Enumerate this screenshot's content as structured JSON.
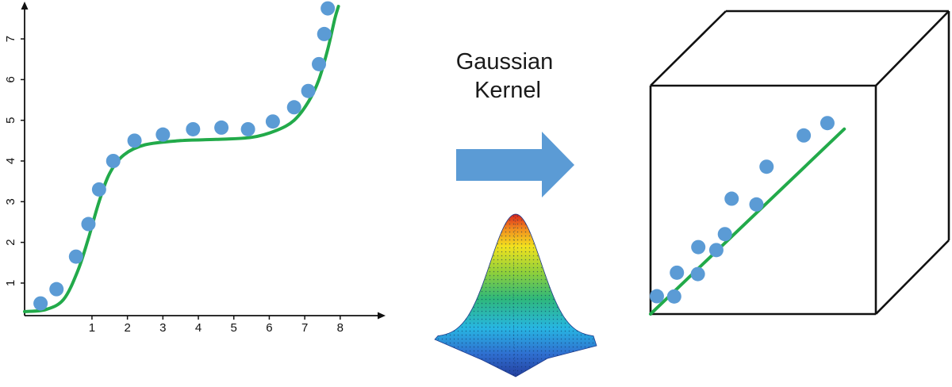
{
  "kernel_label": {
    "line1": "Gaussian",
    "line2": "Kernel"
  },
  "colors": {
    "point": "#5b9bd5",
    "curve": "#22aa4a",
    "arrow": "#5b9bd5",
    "axis": "#111111"
  },
  "icons": {
    "arrow": "right-arrow-icon",
    "kernel_surface": "gaussian-surface-icon"
  },
  "chart_data": [
    {
      "type": "scatter",
      "title": "",
      "xlabel": "",
      "ylabel": "",
      "xlim": [
        -0.9,
        9.1
      ],
      "ylim": [
        0.2,
        7.8
      ],
      "xticks": [
        "1",
        "2",
        "3",
        "4",
        "5",
        "6",
        "7",
        "8"
      ],
      "yticks": [
        "1",
        "2",
        "3",
        "4",
        "5",
        "6",
        "7"
      ],
      "points": [
        [
          -0.45,
          0.5
        ],
        [
          0.0,
          0.85
        ],
        [
          0.55,
          1.65
        ],
        [
          0.9,
          2.45
        ],
        [
          1.2,
          3.3
        ],
        [
          1.6,
          4.0
        ],
        [
          2.2,
          4.5
        ],
        [
          3.0,
          4.65
        ],
        [
          3.85,
          4.78
        ],
        [
          4.65,
          4.82
        ],
        [
          5.4,
          4.78
        ],
        [
          6.1,
          4.97
        ],
        [
          6.7,
          5.32
        ],
        [
          7.1,
          5.72
        ],
        [
          7.4,
          6.38
        ],
        [
          7.55,
          7.12
        ],
        [
          7.65,
          7.75
        ]
      ],
      "curve": [
        [
          -0.9,
          0.3
        ],
        [
          -0.3,
          0.35
        ],
        [
          0.2,
          0.6
        ],
        [
          0.6,
          1.3
        ],
        [
          0.9,
          2.1
        ],
        [
          1.2,
          3.0
        ],
        [
          1.5,
          3.7
        ],
        [
          1.9,
          4.15
        ],
        [
          2.5,
          4.4
        ],
        [
          3.5,
          4.5
        ],
        [
          4.5,
          4.53
        ],
        [
          5.5,
          4.58
        ],
        [
          6.2,
          4.75
        ],
        [
          6.7,
          5.0
        ],
        [
          7.1,
          5.45
        ],
        [
          7.4,
          6.0
        ],
        [
          7.65,
          6.75
        ],
        [
          7.85,
          7.5
        ],
        [
          7.95,
          7.8
        ]
      ]
    },
    {
      "type": "scatter",
      "title": "",
      "xlabel": "",
      "ylabel": "",
      "xlim": [
        0,
        10
      ],
      "ylim": [
        0,
        10
      ],
      "points": [
        [
          0.28,
          0.78
        ],
        [
          1.05,
          0.77
        ],
        [
          1.17,
          1.81
        ],
        [
          2.12,
          2.93
        ],
        [
          2.1,
          1.75
        ],
        [
          2.92,
          2.8
        ],
        [
          3.3,
          3.5
        ],
        [
          3.6,
          5.05
        ],
        [
          4.7,
          4.8
        ],
        [
          5.15,
          6.45
        ],
        [
          6.8,
          7.82
        ],
        [
          7.85,
          8.36
        ]
      ],
      "fit_line": [
        [
          0,
          0
        ],
        [
          8.6,
          8.1
        ]
      ]
    }
  ]
}
